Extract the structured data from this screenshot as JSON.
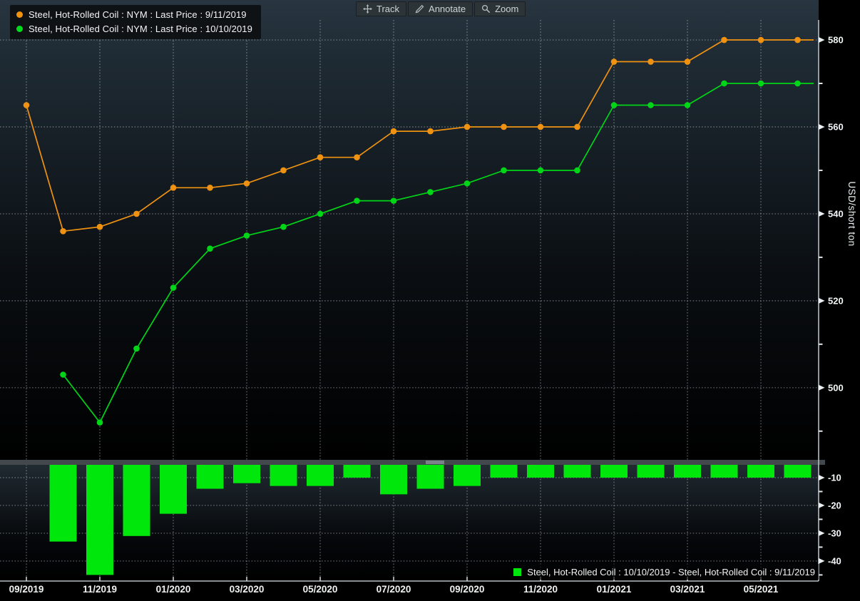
{
  "toolbar": {
    "items": [
      {
        "label": "Track",
        "icon": "move-crosshair"
      },
      {
        "label": "Annotate",
        "icon": "pencil"
      },
      {
        "label": "Zoom",
        "icon": "magnifier"
      }
    ]
  },
  "legend": {
    "items": [
      {
        "label": "Steel, Hot-Rolled Coil : NYM : Last Price : 9/11/2019",
        "color": "#f0930f",
        "marker": "circle"
      },
      {
        "label": "Steel, Hot-Rolled Coil : NYM : Last Price : 10/10/2019",
        "color": "#00dc1d",
        "marker": "circle"
      }
    ]
  },
  "diff_legend": {
    "label": "Steel, Hot-Rolled Coil : 10/10/2019 - Steel, Hot-Rolled Coil : 9/11/2019",
    "color": "#00e70c",
    "marker": "square"
  },
  "colors": {
    "background_top": "#283540",
    "background_bottom": "#000000",
    "grid": "#cfd9de",
    "axis": "#b6bec3",
    "tick_text": "#f2f5f6",
    "orange_series": "#ef9212",
    "green_series": "#00d517",
    "green_bars": "#00e70c",
    "splitter": "#43484c"
  },
  "chart_data": {
    "type": "line+bar",
    "title": "",
    "ylabel": "USD/short ton",
    "x": [
      "09/2019",
      "10/2019",
      "11/2019",
      "12/2019",
      "01/2020",
      "02/2020",
      "03/2020",
      "04/2020",
      "05/2020",
      "06/2020",
      "07/2020",
      "08/2020",
      "09/2020",
      "10/2020",
      "11/2020",
      "12/2020",
      "01/2021",
      "02/2021",
      "03/2021",
      "04/2021",
      "05/2021",
      "06/2021"
    ],
    "x_tick_labels": [
      "09/2019",
      "11/2019",
      "01/2020",
      "03/2020",
      "05/2020",
      "07/2020",
      "09/2020",
      "11/2020",
      "01/2021",
      "03/2021",
      "05/2021"
    ],
    "series": [
      {
        "name": "Steel, Hot-Rolled Coil : NYM : Last Price : 9/11/2019",
        "color": "#ef9212",
        "values": [
          565,
          536,
          537,
          540,
          546,
          546,
          547,
          550,
          553,
          553,
          559,
          559,
          560,
          560,
          560,
          560,
          575,
          575,
          575,
          580,
          580,
          580
        ]
      },
      {
        "name": "Steel, Hot-Rolled Coil : NYM : Last Price : 10/10/2019",
        "color": "#00d517",
        "values": [
          null,
          503,
          492,
          509,
          523,
          532,
          535,
          537,
          540,
          543,
          543,
          545,
          547,
          550,
          550,
          550,
          565,
          565,
          565,
          570,
          570,
          570
        ]
      }
    ],
    "diff_bars": {
      "name": "Steel, Hot-Rolled Coil : 10/10/2019 - Steel, Hot-Rolled Coil : 9/11/2019",
      "color": "#00e70c",
      "values": [
        null,
        -33,
        -45,
        -31,
        -23,
        -14,
        -12,
        -13,
        -13,
        -10,
        -16,
        -14,
        -13,
        -10,
        -10,
        -10,
        -10,
        -10,
        -10,
        -10,
        -10,
        -10
      ]
    },
    "main_yticks": [
      580,
      560,
      540,
      520,
      500
    ],
    "main_minor_yticks": [
      570,
      550,
      530,
      510,
      490
    ],
    "main_ylim": [
      483.4,
      584.6
    ],
    "diff_yticks": [
      -10,
      -20,
      -30,
      -40
    ],
    "diff_minor_yticks": [
      -15,
      -25,
      -35,
      -45
    ],
    "diff_ylim": [
      -47.2,
      -5.4
    ],
    "grid": true,
    "legend_position": {
      "main": "top-left",
      "diff": "bottom-right"
    }
  }
}
